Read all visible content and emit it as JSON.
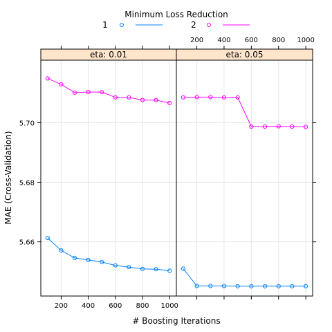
{
  "legend": {
    "title": "Minimum Loss Reduction",
    "entries": [
      {
        "label": "1",
        "color": "#0080ff"
      },
      {
        "label": "2",
        "color": "#ff00ff"
      }
    ]
  },
  "chart_data": {
    "type": "line",
    "xlabel": "# Boosting Iterations",
    "ylabel": "MAE (Cross-Validation)",
    "ylim": [
      5.6418,
      5.721
    ],
    "xlim": [
      50,
      1050
    ],
    "x_ticks": [
      200,
      400,
      600,
      800,
      1000
    ],
    "y_ticks": [
      5.66,
      5.68,
      5.7
    ],
    "y_tick_labels": [
      "5.66",
      "5.68",
      "5.70"
    ],
    "grid": true,
    "panels": [
      {
        "strip": "eta: 0.01",
        "series": [
          {
            "name": "1",
            "color": "#0080ff",
            "x": [
              100,
              200,
              300,
              400,
              500,
              600,
              700,
              800,
              900,
              1000
            ],
            "y": [
              5.6613,
              5.6571,
              5.6546,
              5.6539,
              5.6532,
              5.6521,
              5.6515,
              5.6509,
              5.6508,
              5.6503
            ]
          },
          {
            "name": "2",
            "color": "#ff00ff",
            "x": [
              100,
              200,
              300,
              400,
              500,
              600,
              700,
              800,
              900,
              1000
            ],
            "y": [
              5.7149,
              5.7129,
              5.7101,
              5.7103,
              5.7103,
              5.7085,
              5.7085,
              5.7076,
              5.7076,
              5.7066
            ]
          }
        ]
      },
      {
        "strip": "eta: 0.05",
        "series": [
          {
            "name": "1",
            "color": "#0080ff",
            "x": [
              100,
              200,
              300,
              400,
              500,
              600,
              700,
              800,
              900,
              1000
            ],
            "y": [
              5.651,
              5.6452,
              5.6452,
              5.6452,
              5.6451,
              5.6451,
              5.6451,
              5.6451,
              5.6451,
              5.6451
            ]
          },
          {
            "name": "2",
            "color": "#ff00ff",
            "x": [
              100,
              200,
              300,
              400,
              500,
              600,
              700,
              800,
              900,
              1000
            ],
            "y": [
              5.7085,
              5.7086,
              5.7086,
              5.7085,
              5.7085,
              5.6987,
              5.6987,
              5.6988,
              5.6987,
              5.6986
            ]
          }
        ]
      }
    ]
  }
}
